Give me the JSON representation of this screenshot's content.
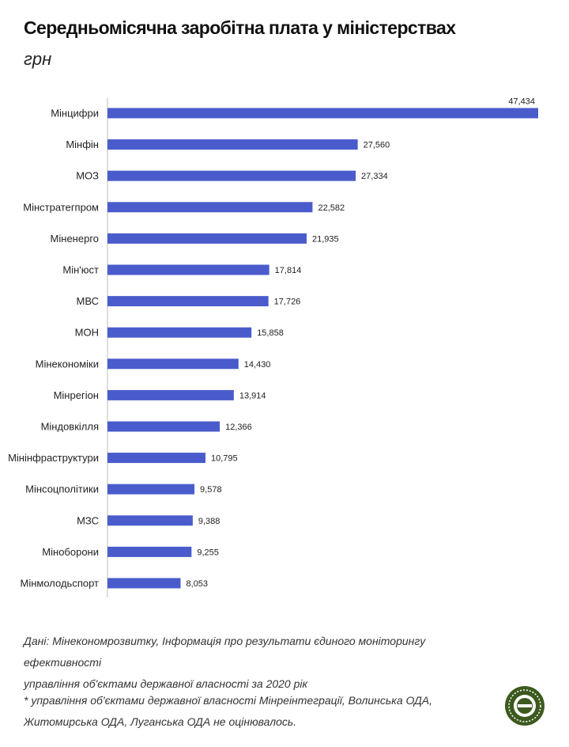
{
  "header": {
    "title": "Середньомісячна заробітна плата у міністерствах",
    "subtitle": "грн"
  },
  "chart_data": {
    "type": "bar",
    "orientation": "horizontal",
    "title": "Середньомісячна заробітна плата у міністерствах",
    "subtitle": "грн",
    "categories": [
      "Мінцифри",
      "Мінфін",
      "МОЗ",
      "Мінстратегпром",
      "Міненерго",
      "Мін'юст",
      "МВС",
      "МОН",
      "Мінекономіки",
      "Мінрегіон",
      "Міндовкілля",
      "Мінінфраструктури",
      "Мінсоцполітики",
      "МЗС",
      "Міноборони",
      "Мінмолодьспорт"
    ],
    "values": [
      47434,
      27560,
      27334,
      22582,
      21935,
      17814,
      17726,
      15858,
      14430,
      13914,
      12366,
      10795,
      9578,
      9388,
      9255,
      8053
    ],
    "value_labels": [
      "47,434",
      "27,560",
      "27,334",
      "22,582",
      "21,935",
      "17,814",
      "17,726",
      "15,858",
      "14,430",
      "13,914",
      "12,366",
      "10,795",
      "9,578",
      "9,388",
      "9,255",
      "8,053"
    ],
    "xlim": [
      0,
      47434
    ],
    "bar_color": "#4a5ccc",
    "grid": false,
    "legend": "none"
  },
  "footer": {
    "source_line1": "Дані: Мінекономрозвитку, Інформація про результати єдиного моніторингу ефективності",
    "source_line2": "управління об'єктами державної власності за 2020 рік",
    "note_line1": "* управління об'єктами державної власності Мінреінтеграції, Волинська ОДА,",
    "note_line2": "Житомирська ОДА, Луганська ОДА  не оцінювалось."
  },
  "logo": {
    "icon": "publisher-logo-icon",
    "color": "#3d5a1e"
  }
}
